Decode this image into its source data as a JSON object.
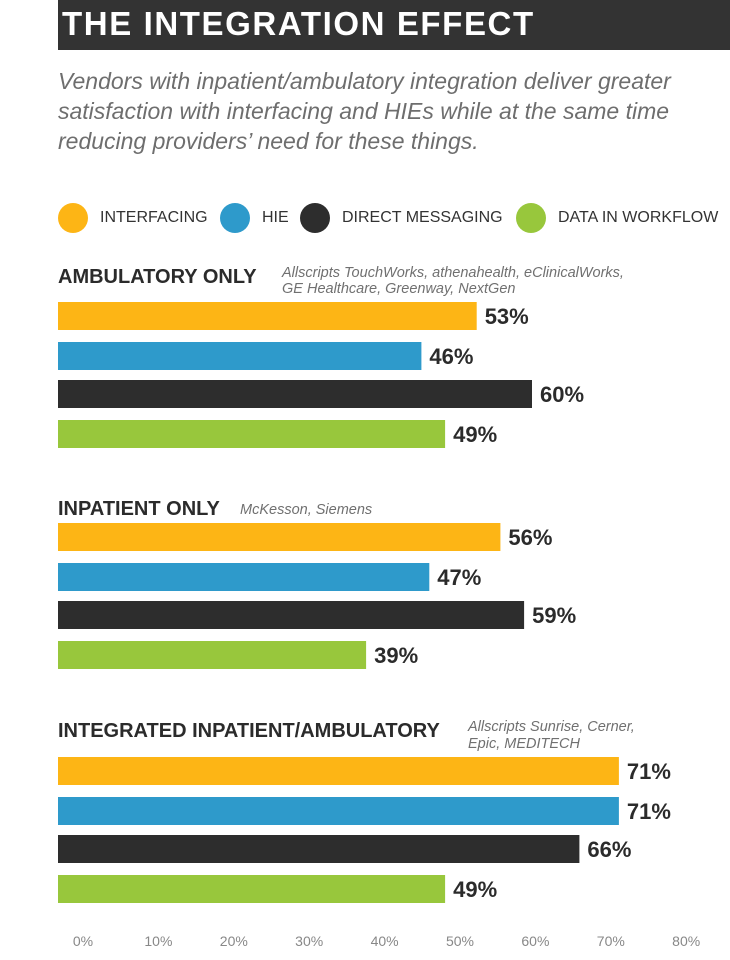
{
  "title": "THE INTEGRATION EFFECT",
  "subtitle": "Vendors with inpatient/ambulatory integration deliver greater satisfaction with interfacing and HIEs while at the same time reducing providers’ need for these things.",
  "colors": {
    "title_bar": "#333333",
    "interfacing": "#FDB515",
    "hie": "#2E9ACB",
    "direct_messaging": "#2D2D2D",
    "data_in_workflow": "#98C73C"
  },
  "chart_data": {
    "type": "bar",
    "orientation": "horizontal",
    "title": "THE INTEGRATION EFFECT",
    "xlim": [
      0,
      80
    ],
    "xticks": [
      "0%",
      "10%",
      "20%",
      "30%",
      "40%",
      "50%",
      "60%",
      "70%",
      "80%"
    ],
    "legend": [
      "INTERFACING",
      "HIE",
      "DIRECT MESSAGING",
      "DATA IN WORKFLOW"
    ],
    "legend_position": "top",
    "groups": [
      {
        "name": "AMBULATORY ONLY",
        "vendors_lines": [
          "Allscripts TouchWorks, athenahealth, eClinicalWorks,",
          "GE Healthcare, Greenway, NextGen"
        ],
        "values": [
          53,
          46,
          60,
          49
        ],
        "labels": [
          "53%",
          "46%",
          "60%",
          "49%"
        ]
      },
      {
        "name": "INPATIENT ONLY",
        "vendors_lines": [
          "McKesson, Siemens"
        ],
        "values": [
          56,
          47,
          59,
          39
        ],
        "labels": [
          "56%",
          "47%",
          "59%",
          "39%"
        ]
      },
      {
        "name": "INTEGRATED INPATIENT/AMBULATORY",
        "vendors_lines": [
          "Allscripts Sunrise, Cerner,",
          "Epic, MEDITECH"
        ],
        "values": [
          71,
          71,
          66,
          49
        ],
        "labels": [
          "71%",
          "71%",
          "66%",
          "49%"
        ]
      }
    ]
  }
}
